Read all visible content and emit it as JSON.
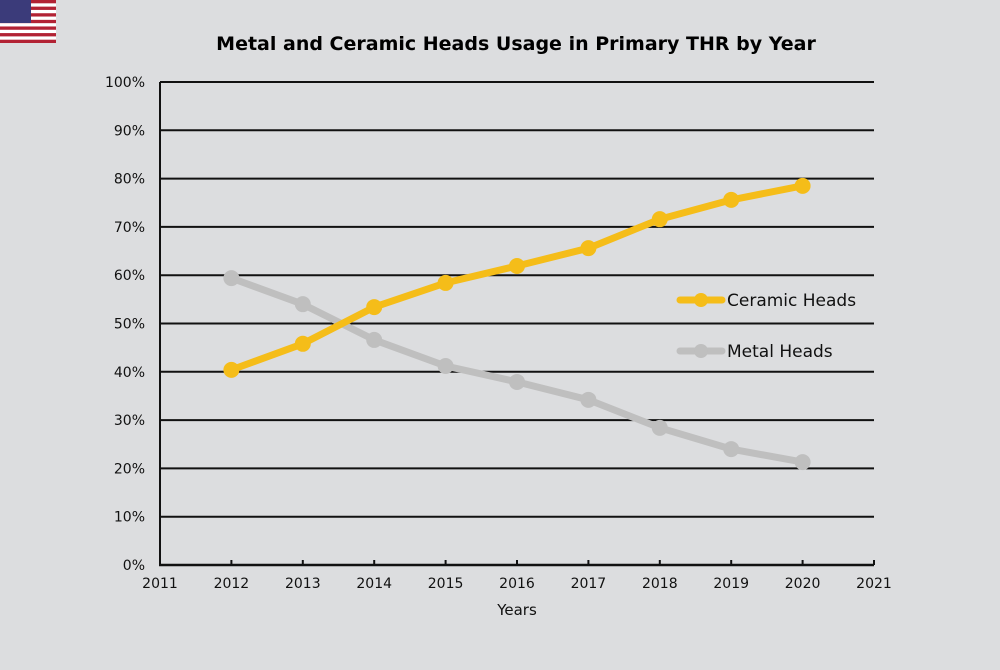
{
  "flag_icon": "us-flag-icon",
  "chart_data": {
    "type": "line",
    "title": "Metal and Ceramic Heads Usage  in Primary THR by Year",
    "xlabel": "Years",
    "ylabel": "",
    "xlim": [
      2011,
      2021
    ],
    "ylim": [
      0,
      100
    ],
    "x_ticks": [
      "2011",
      "2012",
      "2013",
      "2014",
      "2015",
      "2016",
      "2017",
      "2018",
      "2019",
      "2020",
      "2021"
    ],
    "y_ticks": [
      "0%",
      "10%",
      "20%",
      "30%",
      "40%",
      "50%",
      "60%",
      "70%",
      "80%",
      "90%",
      "100%"
    ],
    "y_tick_values": [
      0,
      10,
      20,
      30,
      40,
      50,
      60,
      70,
      80,
      90,
      100
    ],
    "grid": "horizontal",
    "legend_position": "right",
    "x": [
      2012,
      2013,
      2014,
      2015,
      2016,
      2017,
      2018,
      2019,
      2020
    ],
    "series": [
      {
        "name": "Ceramic Heads",
        "color": "#f5bd19",
        "values": [
          40.4,
          45.8,
          53.4,
          58.4,
          61.9,
          65.6,
          71.6,
          75.6,
          78.5
        ]
      },
      {
        "name": "Metal Heads",
        "color": "#bfbfbf",
        "values": [
          59.4,
          54.0,
          46.6,
          41.2,
          37.9,
          34.2,
          28.4,
          24.0,
          21.3
        ]
      }
    ]
  }
}
